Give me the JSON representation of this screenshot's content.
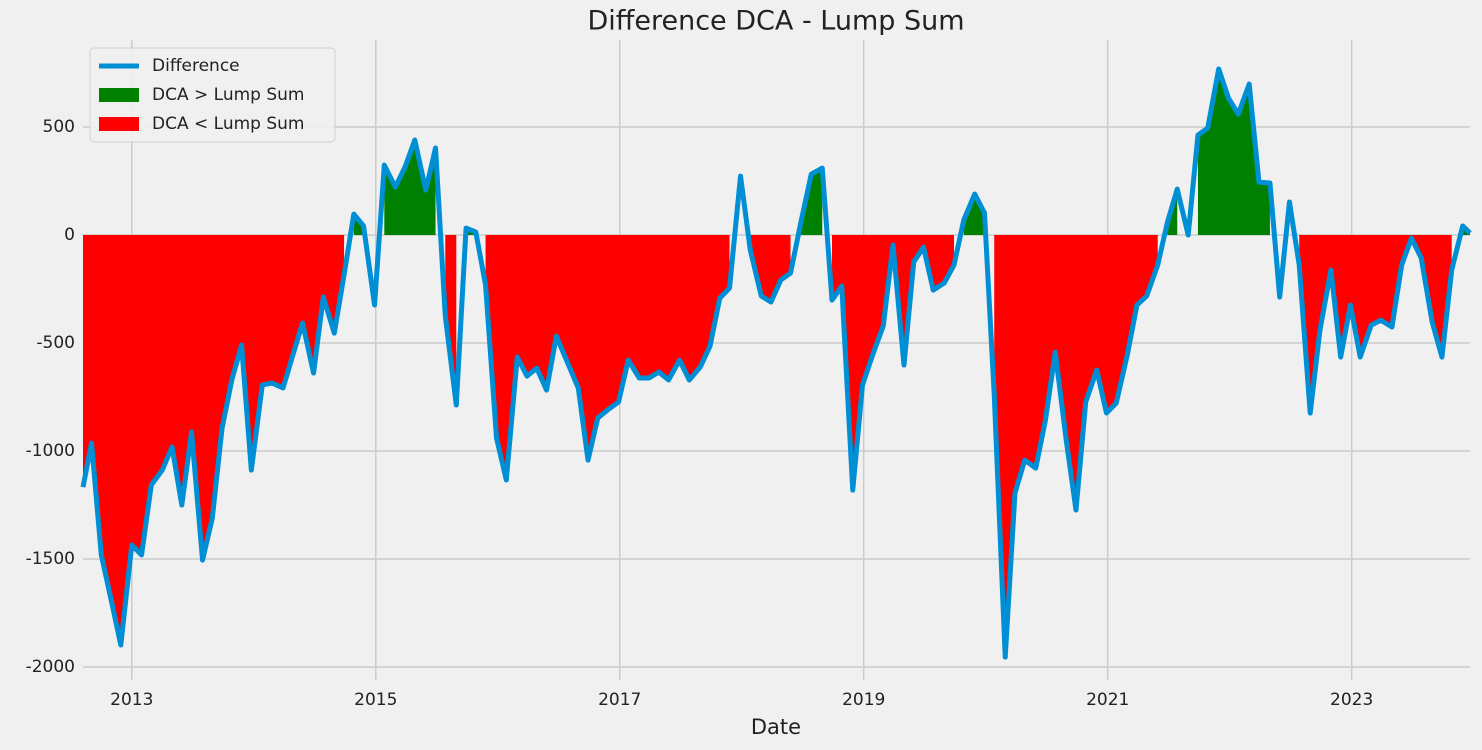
{
  "chart_data": {
    "type": "line",
    "title": "Difference DCA - Lump Sum",
    "x_label": "Date",
    "x": [
      2012.6,
      2012.67,
      2012.75,
      2012.84,
      2012.91,
      2013.0,
      2013.08,
      2013.16,
      2013.25,
      2013.33,
      2013.41,
      2013.49,
      2013.58,
      2013.66,
      2013.74,
      2013.82,
      2013.9,
      2013.98,
      2014.07,
      2014.15,
      2014.24,
      2014.32,
      2014.4,
      2014.49,
      2014.57,
      2014.66,
      2014.74,
      2014.82,
      2014.9,
      2014.99,
      2015.07,
      2015.16,
      2015.24,
      2015.32,
      2015.41,
      2015.49,
      2015.57,
      2015.66,
      2015.74,
      2015.82,
      2015.9,
      2015.99,
      2016.07,
      2016.16,
      2016.24,
      2016.32,
      2016.4,
      2016.48,
      2016.57,
      2016.66,
      2016.74,
      2016.82,
      2016.9,
      2016.99,
      2017.07,
      2017.16,
      2017.24,
      2017.32,
      2017.4,
      2017.49,
      2017.57,
      2017.66,
      2017.74,
      2017.82,
      2017.9,
      2017.99,
      2018.07,
      2018.16,
      2018.24,
      2018.32,
      2018.4,
      2018.48,
      2018.57,
      2018.66,
      2018.74,
      2018.82,
      2018.91,
      2018.99,
      2019.07,
      2019.16,
      2019.24,
      2019.33,
      2019.41,
      2019.49,
      2019.57,
      2019.66,
      2019.74,
      2019.82,
      2019.91,
      2019.99,
      2020.07,
      2020.16,
      2020.24,
      2020.32,
      2020.41,
      2020.49,
      2020.57,
      2020.66,
      2020.74,
      2020.82,
      2020.91,
      2020.99,
      2021.07,
      2021.16,
      2021.24,
      2021.32,
      2021.41,
      2021.49,
      2021.57,
      2021.66,
      2021.74,
      2021.82,
      2021.91,
      2021.99,
      2022.07,
      2022.16,
      2022.24,
      2022.33,
      2022.41,
      2022.49,
      2022.57,
      2022.66,
      2022.74,
      2022.83,
      2022.91,
      2022.99,
      2023.07,
      2023.16,
      2023.24,
      2023.33,
      2023.41,
      2023.49,
      2023.57,
      2023.66,
      2023.74,
      2023.82,
      2023.91,
      2023.97
    ],
    "series": [
      {
        "name": "Difference",
        "color": "#008fd5",
        "values": [
          -1167,
          -963,
          -1481,
          -1713,
          -1898,
          -1435,
          -1481,
          -1157,
          -1088,
          -981,
          -1250,
          -912,
          -1505,
          -1310,
          -894,
          -671,
          -509,
          -1088,
          -694,
          -685,
          -708,
          -556,
          -407,
          -639,
          -287,
          -454,
          -185,
          97,
          42,
          -324,
          324,
          222,
          315,
          440,
          208,
          403,
          -375,
          -787,
          32,
          14,
          -231,
          -940,
          -1134,
          -565,
          -653,
          -616,
          -718,
          -468,
          -588,
          -708,
          -1042,
          -847,
          -810,
          -773,
          -579,
          -662,
          -662,
          -634,
          -671,
          -579,
          -671,
          -611,
          -514,
          -292,
          -245,
          273,
          -69,
          -282,
          -310,
          -208,
          -176,
          46,
          282,
          310,
          -301,
          -236,
          -1181,
          -694,
          -560,
          -421,
          -46,
          -602,
          -125,
          -56,
          -255,
          -222,
          -139,
          69,
          190,
          102,
          -741,
          -1954,
          -1194,
          -1042,
          -1079,
          -856,
          -542,
          -949,
          -1273,
          -773,
          -625,
          -824,
          -778,
          -556,
          -324,
          -282,
          -139,
          60,
          213,
          0,
          463,
          495,
          769,
          634,
          560,
          699,
          245,
          241,
          -287,
          153,
          -139,
          -824,
          -440,
          -162,
          -565,
          -324,
          -565,
          -417,
          -394,
          -426,
          -139,
          -14,
          -106,
          -403,
          -565,
          -162,
          42,
          9
        ]
      }
    ],
    "fills": [
      {
        "name": "DCA > Lump Sum",
        "color": "#008000",
        "where": "above"
      },
      {
        "name": "DCA < Lump Sum",
        "color": "#ff0000",
        "where": "below"
      }
    ],
    "xlim": [
      2012.6,
      2023.97
    ],
    "ylim": [
      -2060,
      903
    ],
    "xticks": [
      2013,
      2015,
      2017,
      2019,
      2021,
      2023
    ],
    "yticks": [
      -2000,
      -1500,
      -1000,
      -500,
      0,
      500
    ],
    "grid": true,
    "legend": "upper left"
  }
}
